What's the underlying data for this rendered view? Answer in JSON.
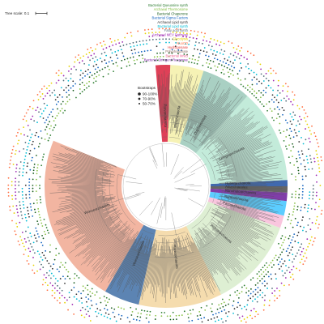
{
  "scale": {
    "label": "Tree scale: 0.1"
  },
  "legend": [
    {
      "label": "Bacterial Queuosine synth",
      "color": "#2e7d32"
    },
    {
      "label": "Archaeal Thermosome",
      "color": "#8bc34a"
    },
    {
      "label": "Bacterial Chaperone",
      "color": "#1b5e20"
    },
    {
      "label": "Bacterial Sigma Factors",
      "color": "#1565c0"
    },
    {
      "label": "Archaeal Lipid synth",
      "color": "#333333"
    },
    {
      "label": "Bacterial Lipid synth",
      "color": "#00bcd4"
    },
    {
      "label": "Fatty acid synth",
      "color": "#546e7a"
    },
    {
      "label": "Archaeal MEV Pathway",
      "color": "#9c27b0"
    },
    {
      "label": "Glycolysis",
      "color": "#e6d200"
    },
    {
      "label": "NuoCD",
      "color": "#ff7043"
    },
    {
      "label": "Hydrogenase",
      "color": "#e53935"
    },
    {
      "label": "Polyphosphate",
      "color": "#8d6e63"
    },
    {
      "label": "Bacterial MreB",
      "color": "#f06292"
    },
    {
      "label": "Bacterial Stringent Response",
      "color": "#7b1fa2"
    }
  ],
  "bootstraps": {
    "title": "Bootstraps",
    "levels": [
      "90-100%",
      "70-90%",
      "50-70%"
    ]
  },
  "clades": [
    {
      "label": "Woesearchaeota",
      "color": "#f0a890",
      "start": 210,
      "end": 292
    },
    {
      "label": "Woesearchaeota",
      "color": "#3f6fa6",
      "start": 193,
      "end": 210
    },
    {
      "label": "Pacearchaeota",
      "color": "#f3d6a0",
      "start": 153,
      "end": 193
    },
    {
      "label": "Woesearchaeota",
      "color": "#d8eccb",
      "start": 110,
      "end": 153
    },
    {
      "label": "Pacearchaeota",
      "color": "#f8bcd8",
      "start": 104,
      "end": 110
    },
    {
      "label": "Nanoarchaeota",
      "color": "#40c4ff",
      "start": 97,
      "end": 104
    },
    {
      "label": "Nanohaloarchaeota",
      "color": "#6a1b9a",
      "start": 93,
      "end": 97
    },
    {
      "label": "Altiarchaeales",
      "color": "#4a4a4a",
      "start": 90,
      "end": 93
    },
    {
      "label": "Huberarchaeota",
      "color": "#1e4fa0",
      "start": 87,
      "end": 90
    },
    {
      "label": "Aenigmarchaeota",
      "color": "#b9e7d4",
      "start": 42,
      "end": 87
    },
    {
      "label": "Diapherotrites",
      "color": "#9ac8b8",
      "start": 18,
      "end": 42
    },
    {
      "label": "Micrarchaeota",
      "color": "#f5f0a8",
      "start": 2,
      "end": 18
    },
    {
      "label": "Parvarchaeota",
      "color": "#d91e3a",
      "start": 355,
      "end": 2
    }
  ]
}
